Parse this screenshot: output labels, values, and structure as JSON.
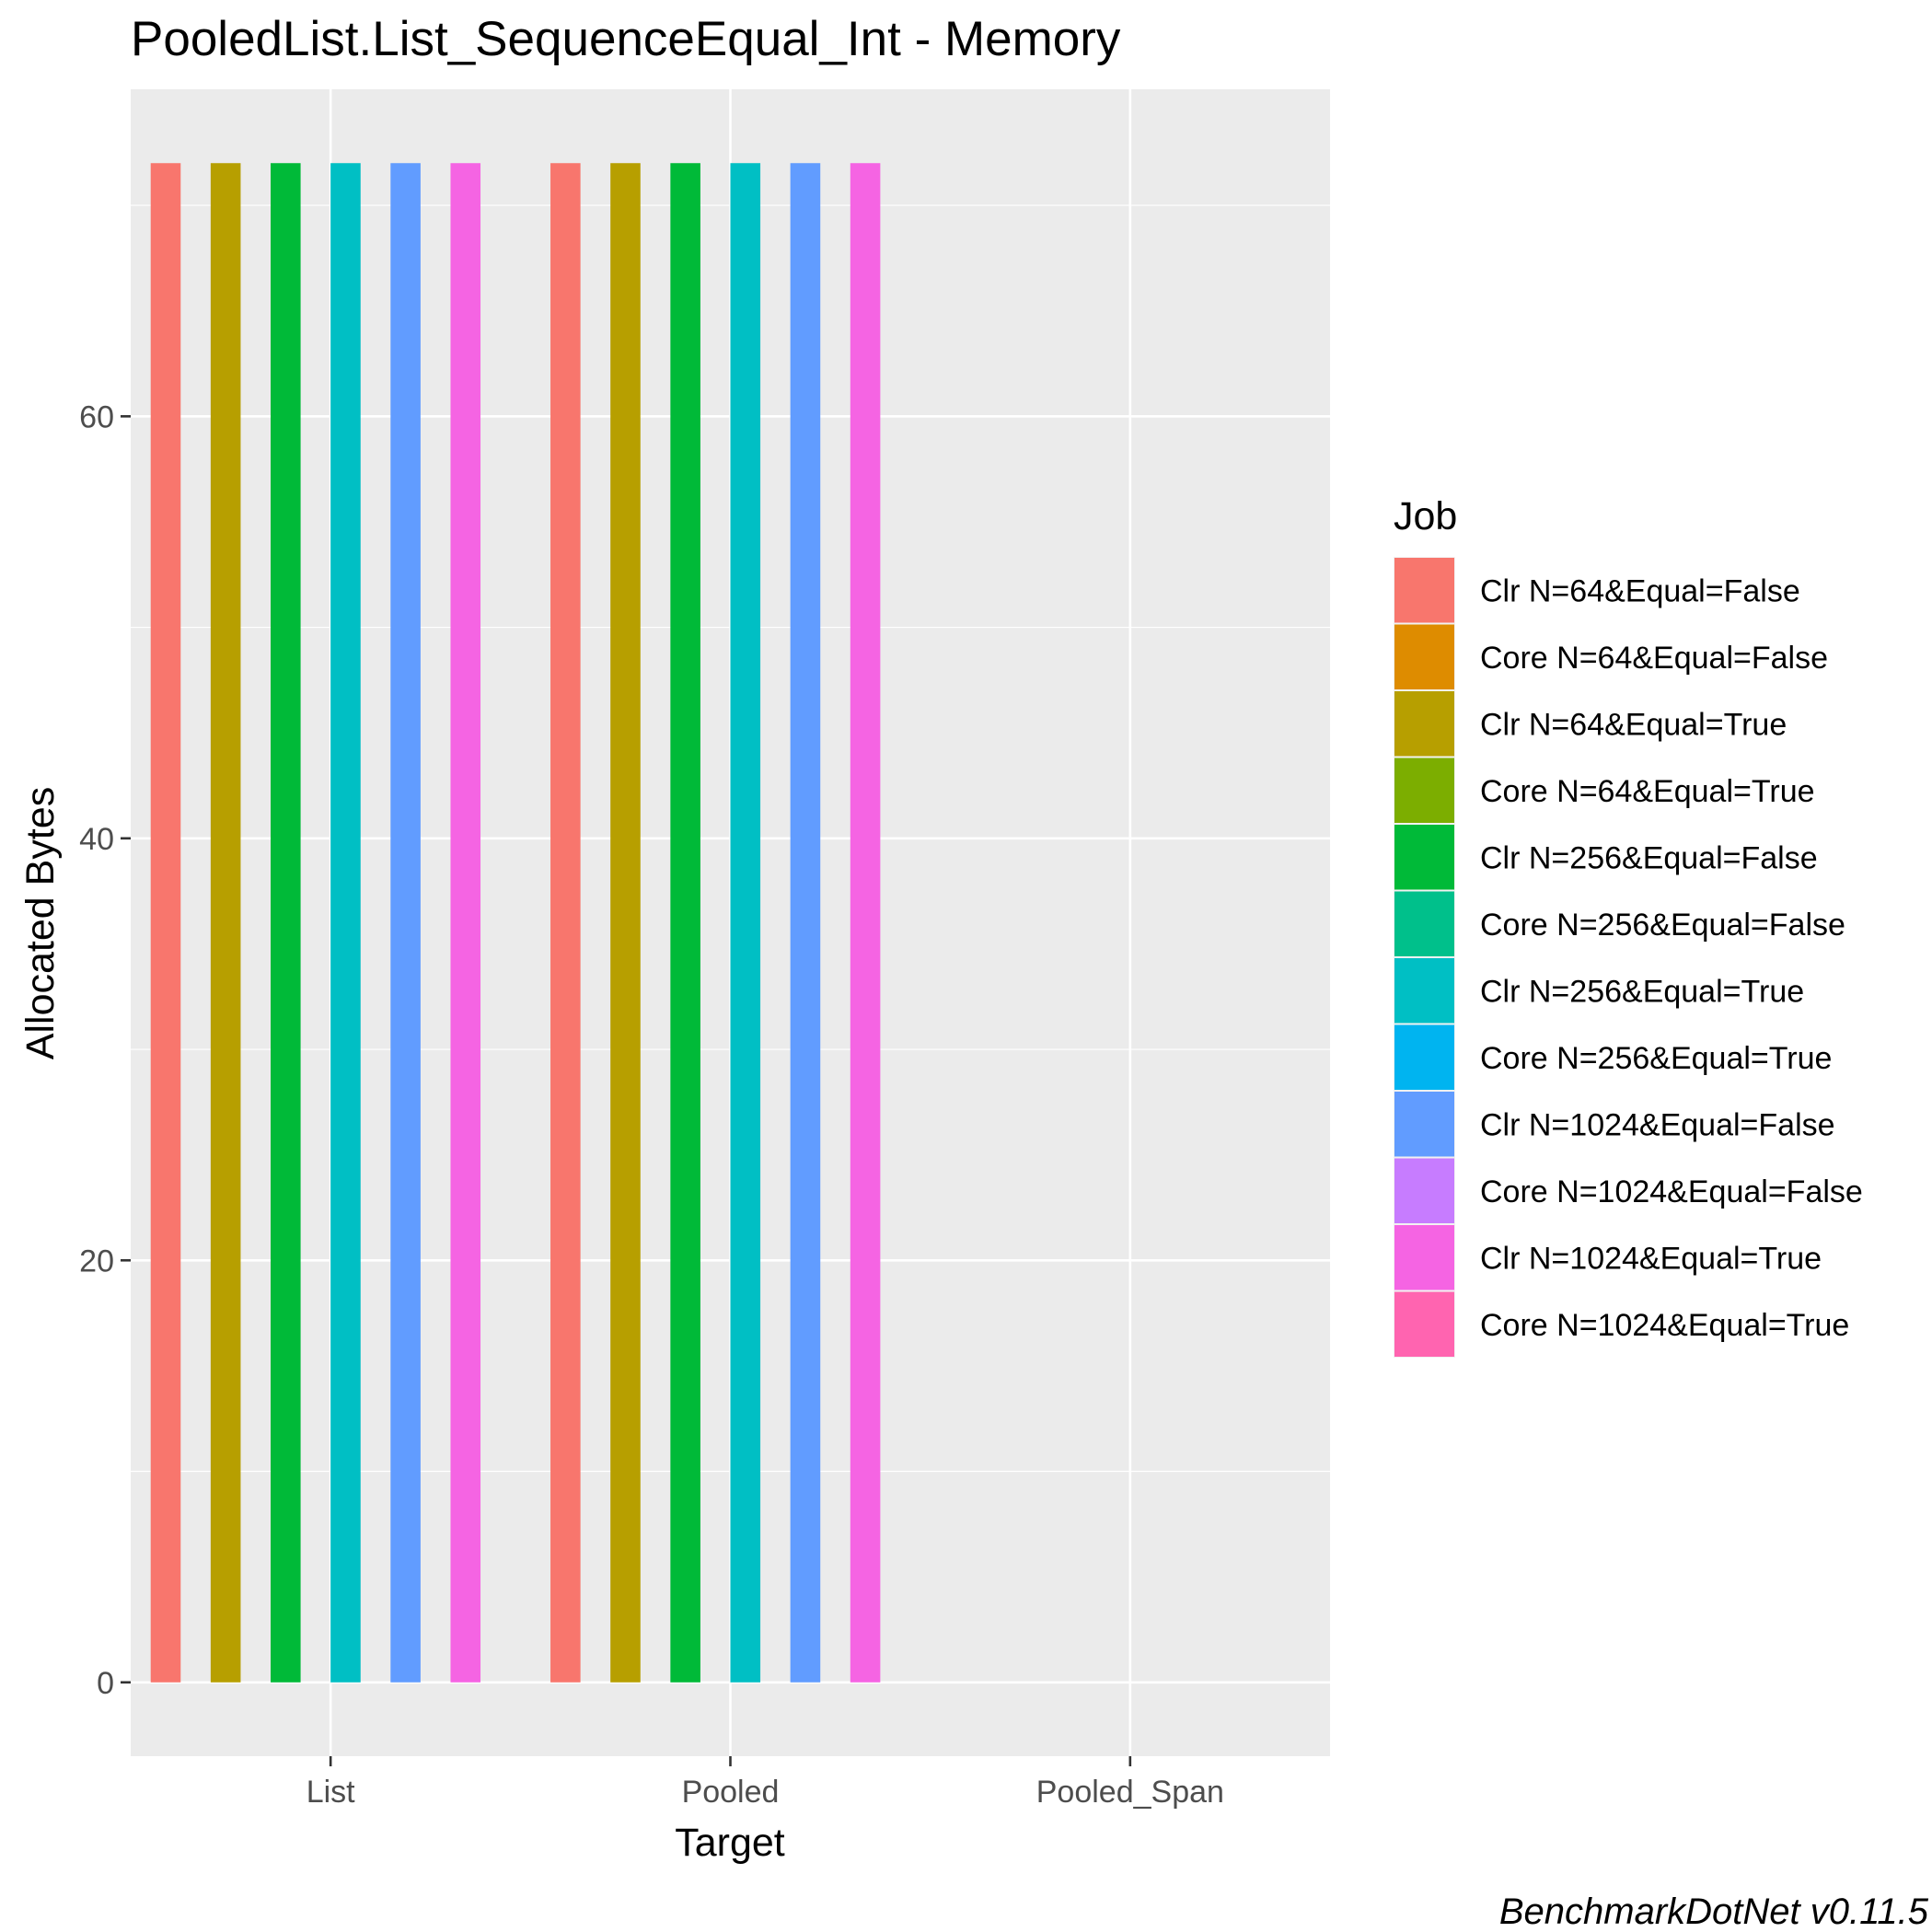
{
  "chart_data": {
    "type": "bar",
    "title": "PooledList.List_SequenceEqual_Int - Memory",
    "xlabel": "Target",
    "ylabel": "Allocated  Bytes",
    "categories": [
      "List",
      "Pooled",
      "Pooled_Span"
    ],
    "ylim": [
      -3.5,
      75.5
    ],
    "yticks": [
      0,
      20,
      40,
      60
    ],
    "ytick_labels": [
      "0",
      "20",
      "40",
      "60"
    ],
    "grid": true,
    "legend": {
      "title": "Job",
      "position": "right"
    },
    "series": [
      {
        "name": "Clr N=64&Equal=False",
        "color": "#F8766D",
        "values": [
          72,
          72,
          0
        ]
      },
      {
        "name": "Core N=64&Equal=False",
        "color": "#DE8C00",
        "values": [
          null,
          null,
          null
        ]
      },
      {
        "name": "Clr N=64&Equal=True",
        "color": "#B79F00",
        "values": [
          72,
          72,
          0
        ]
      },
      {
        "name": "Core N=64&Equal=True",
        "color": "#7CAE00",
        "values": [
          null,
          null,
          null
        ]
      },
      {
        "name": "Clr N=256&Equal=False",
        "color": "#00BA38",
        "values": [
          72,
          72,
          0
        ]
      },
      {
        "name": "Core N=256&Equal=False",
        "color": "#00C08B",
        "values": [
          null,
          null,
          null
        ]
      },
      {
        "name": "Clr N=256&Equal=True",
        "color": "#00BFC4",
        "values": [
          72,
          72,
          0
        ]
      },
      {
        "name": "Core N=256&Equal=True",
        "color": "#00B4F0",
        "values": [
          null,
          null,
          null
        ]
      },
      {
        "name": "Clr N=1024&Equal=False",
        "color": "#619CFF",
        "values": [
          72,
          72,
          0
        ]
      },
      {
        "name": "Core N=1024&Equal=False",
        "color": "#C77CFF",
        "values": [
          null,
          null,
          null
        ]
      },
      {
        "name": "Clr N=1024&Equal=True",
        "color": "#F564E3",
        "values": [
          72,
          72,
          0
        ]
      },
      {
        "name": "Core N=1024&Equal=True",
        "color": "#FF64B0",
        "values": [
          null,
          null,
          null
        ]
      }
    ],
    "caption": "BenchmarkDotNet v0.11.5",
    "colors": {
      "panel_background": "#EBEBEB",
      "grid_line": "#FFFFFF",
      "axis_text": "#4D4D4D",
      "title_text": "#000000"
    }
  }
}
